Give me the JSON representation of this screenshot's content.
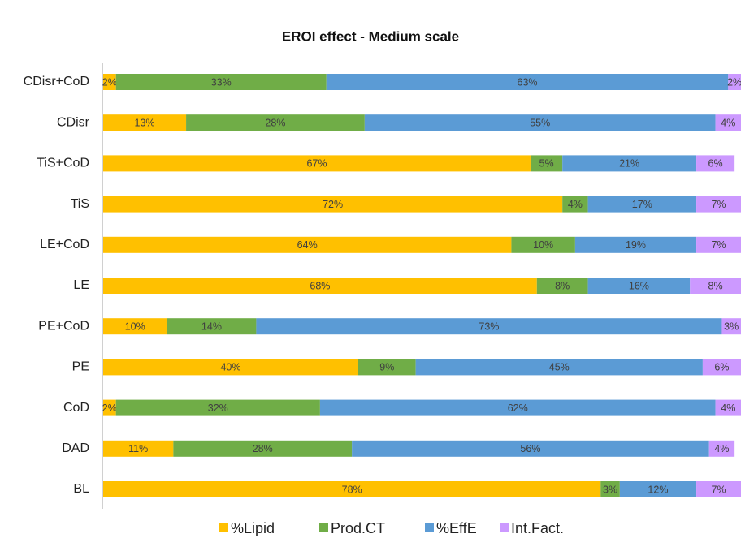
{
  "chart_data": {
    "type": "stacked-bar-horizontal",
    "title": "EROI effect - Medium scale",
    "categories": [
      "CDisr+CoD",
      "CDisr",
      "TiS+CoD",
      "TiS",
      "LE+CoD",
      "LE",
      "PE+CoD",
      "PE",
      "CoD",
      "DAD",
      "BL"
    ],
    "xlim": [
      0,
      100
    ],
    "legend": "bottom",
    "series": [
      {
        "name": "%Lipid",
        "color": "#FFC000",
        "values": [
          2,
          13,
          67,
          72,
          64,
          68,
          10,
          40,
          2,
          11,
          78
        ],
        "value_labels": [
          "2%",
          "13%",
          "67%",
          "72%",
          "64%",
          "68%",
          "10%",
          "40%",
          "2%",
          "11%",
          "78%"
        ]
      },
      {
        "name": "Prod.CT",
        "color": "#70AD47",
        "values": [
          33,
          28,
          5,
          4,
          10,
          8,
          14,
          9,
          32,
          28,
          3
        ],
        "value_labels": [
          "33%",
          "28%",
          "5%",
          "4%",
          "10%",
          "8%",
          "14%",
          "9%",
          "32%",
          "28%",
          "3%"
        ]
      },
      {
        "name": "%EffE",
        "color": "#5B9BD5",
        "values": [
          63,
          55,
          21,
          17,
          19,
          16,
          73,
          45,
          62,
          56,
          12
        ],
        "value_labels": [
          "63%",
          "55%",
          "21%",
          "17%",
          "19%",
          "16%",
          "73%",
          "45%",
          "62%",
          "56%",
          "12%"
        ]
      },
      {
        "name": "Int.Fact.",
        "color": "#CC99FF",
        "values": [
          2,
          4,
          6,
          7,
          7,
          8,
          3,
          6,
          4,
          4,
          7
        ],
        "value_labels": [
          "2%",
          "4%",
          "6%",
          "7%",
          "7%",
          "8%",
          "3%",
          "6%",
          "4%",
          "4%",
          "7%"
        ]
      }
    ]
  }
}
